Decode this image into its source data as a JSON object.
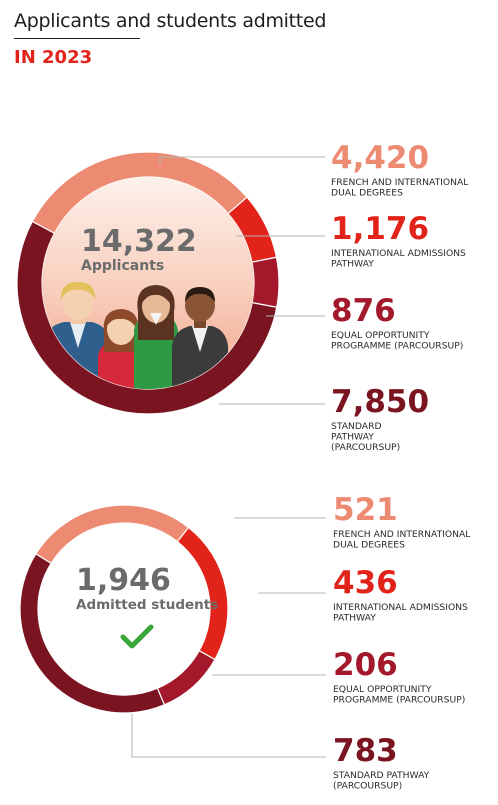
{
  "header": {
    "title": "Applicants and students admitted",
    "subtitle": "IN 2023"
  },
  "colors": {
    "light_salmon": "#ec8a72",
    "red": "#e2231a",
    "crimson": "#a3182a",
    "dark_burgundy": "#7a1421",
    "grey_text": "#6b6b6b",
    "check_green": "#3aa63a"
  },
  "chart_data": [
    {
      "type": "pie",
      "center_value": "14,322",
      "center_label": "Applicants",
      "slices": [
        {
          "label": "FRENCH AND INTERNATIONAL DUAL DEGREES",
          "value": 4420,
          "value_text": "4,420",
          "color": "#ec8a72"
        },
        {
          "label": "INTERNATIONAL ADMISSIONS PATHWAY",
          "value": 1176,
          "value_text": "1,176",
          "color": "#e2231a"
        },
        {
          "label": "EQUAL OPPORTUNITY PROGRAMME (PARCOURSUP)",
          "value": 876,
          "value_text": "876",
          "color": "#a3182a"
        },
        {
          "label": "STANDARD PATHWAY (PARCOURSUP)",
          "value": 7850,
          "value_text": "7,850",
          "color": "#7a1421"
        }
      ]
    },
    {
      "type": "pie",
      "center_value": "1,946",
      "center_label": "Admitted students",
      "slices": [
        {
          "label": "FRENCH AND INTERNATIONAL DUAL DEGREES",
          "value": 521,
          "value_text": "521",
          "color": "#ec8a72"
        },
        {
          "label": "INTERNATIONAL ADMISSIONS PATHWAY",
          "value": 436,
          "value_text": "436",
          "color": "#e2231a"
        },
        {
          "label": "EQUAL OPPORTUNITY PROGRAMME (PARCOURSUP)",
          "value": 206,
          "value_text": "206",
          "color": "#a3182a"
        },
        {
          "label": "STANDARD PATHWAY (PARCOURSUP)",
          "value": 783,
          "value_text": "783",
          "color": "#7a1421"
        }
      ]
    }
  ]
}
